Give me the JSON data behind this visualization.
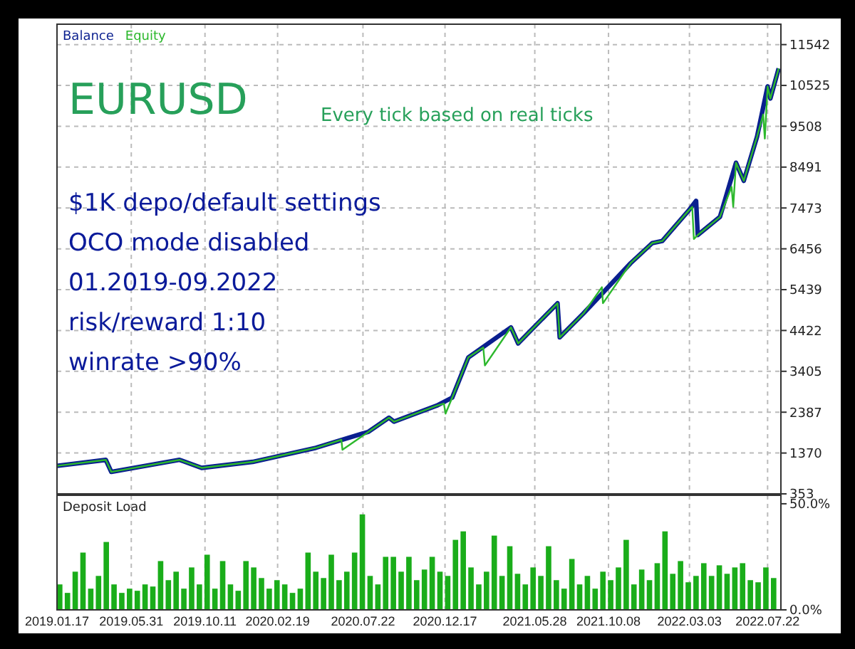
{
  "chart_data": [
    {
      "type": "line",
      "legend": "top left",
      "grid": true,
      "tick_labels": "y",
      "line_style": "solid",
      "annotations": [
        "EURUSD",
        "Every tick based on real ticks",
        "$1K depo/default settings",
        "OCO mode disabled",
        "01.2019-09.2022",
        "risk/reward 1:10",
        "winrate >90%"
      ],
      "xlim": [
        "2019-01-17",
        "2022-08-15"
      ],
      "xticks": [
        {
          "value": "2019-01-17",
          "label": null
        },
        {
          "value": "2019-05-31",
          "label": null
        },
        {
          "value": "2019-10-11",
          "label": null
        },
        {
          "value": "2020-02-19",
          "label": null
        },
        {
          "value": "2020-07-22",
          "label": null
        },
        {
          "value": "2020-12-17",
          "label": null
        },
        {
          "value": "2021-05-28",
          "label": null
        },
        {
          "value": "2021-10-08",
          "label": null
        },
        {
          "value": "2022-03-03",
          "label": null
        },
        {
          "value": "2022-07-22",
          "label": null
        }
      ],
      "ylim": [
        353,
        12050
      ],
      "yticks": [
        353,
        1370,
        2387,
        3405,
        4422,
        5439,
        6456,
        7473,
        8491,
        9508,
        10525,
        11542
      ],
      "series": [
        {
          "name": "Balance",
          "color": "#0a1f8f",
          "x": [
            "2019-01-17",
            "2019-04-15",
            "2019-04-25",
            "2019-08-26",
            "2019-10-05",
            "2020-01-05",
            "2020-04-28",
            "2020-08-01",
            "2020-09-07",
            "2020-09-16",
            "2020-12-02",
            "2020-12-30",
            "2021-01-28",
            "2021-04-15",
            "2021-04-28",
            "2021-07-08",
            "2021-07-12",
            "2021-08-24",
            "2021-11-17",
            "2021-12-26",
            "2022-01-13",
            "2022-03-01",
            "2022-03-15",
            "2022-03-18",
            "2022-04-27",
            "2022-05-26",
            "2022-06-09",
            "2022-07-03",
            "2022-07-22",
            "2022-07-27",
            "2022-08-11"
          ],
          "values": [
            1050,
            1200,
            900,
            1200,
            1000,
            1150,
            1500,
            1900,
            2250,
            2150,
            2550,
            2750,
            3750,
            4500,
            4100,
            5100,
            4250,
            4850,
            6100,
            6600,
            6650,
            7400,
            7650,
            6800,
            7250,
            8600,
            8150,
            9250,
            10500,
            10200,
            10950
          ]
        },
        {
          "name": "Equity",
          "color": "#2db82d",
          "x": [
            "2019-01-17",
            "2019-04-15",
            "2019-04-25",
            "2019-08-26",
            "2019-10-05",
            "2020-01-05",
            "2020-04-28",
            "2020-06-13",
            "2020-06-15",
            "2020-08-01",
            "2020-09-07",
            "2020-09-16",
            "2020-12-02",
            "2020-12-15",
            "2020-12-18",
            "2020-12-30",
            "2021-01-28",
            "2021-02-24",
            "2021-02-27",
            "2021-04-15",
            "2021-04-28",
            "2021-07-08",
            "2021-07-12",
            "2021-08-24",
            "2021-09-26",
            "2021-09-28",
            "2021-11-17",
            "2021-12-26",
            "2022-01-13",
            "2022-03-01",
            "2022-03-08",
            "2022-03-11",
            "2022-03-18",
            "2022-04-27",
            "2022-05-18",
            "2022-05-21",
            "2022-05-26",
            "2022-06-09",
            "2022-07-03",
            "2022-07-14",
            "2022-07-17",
            "2022-07-22",
            "2022-07-27",
            "2022-08-11"
          ],
          "values": [
            1050,
            1200,
            900,
            1200,
            1000,
            1150,
            1500,
            1700,
            1450,
            1900,
            2250,
            2150,
            2550,
            2600,
            2350,
            2750,
            3750,
            4000,
            3550,
            4500,
            4100,
            5100,
            4250,
            4850,
            5500,
            5100,
            6100,
            6600,
            6650,
            7400,
            7500,
            6700,
            6800,
            7250,
            8000,
            7500,
            8600,
            8150,
            9250,
            9800,
            9200,
            10500,
            10200,
            10950
          ]
        }
      ]
    },
    {
      "type": "bar",
      "title": "Deposit Load",
      "grid": "x",
      "color": "#1aad1a",
      "xlim": [
        "2019-01-17",
        "2022-08-15"
      ],
      "xticks": [
        {
          "value": "2019-01-17",
          "label": "2019.01.17"
        },
        {
          "value": "2019-05-31",
          "label": "2019.05.31"
        },
        {
          "value": "2019-10-11",
          "label": "2019.10.11"
        },
        {
          "value": "2020-02-19",
          "label": "2020.02.19"
        },
        {
          "value": "2020-07-22",
          "label": "2020.07.22"
        },
        {
          "value": "2020-12-17",
          "label": "2020.12.17"
        },
        {
          "value": "2021-05-28",
          "label": "2021.05.28"
        },
        {
          "value": "2021-10-08",
          "label": "2021.10.08"
        },
        {
          "value": "2022-03-03",
          "label": "2022.03.03"
        },
        {
          "value": "2022-07-22",
          "label": "2022.07.22"
        }
      ],
      "ylim": [
        0,
        54
      ],
      "yticks": [
        {
          "value": 0,
          "label": "0.0%"
        },
        {
          "value": 50,
          "label": "50.0%"
        }
      ],
      "x": [
        "2019-01-17",
        "2019-01-31",
        "2019-02-14",
        "2019-02-28",
        "2019-03-14",
        "2019-03-28",
        "2019-04-11",
        "2019-04-25",
        "2019-05-09",
        "2019-05-23",
        "2019-06-06",
        "2019-06-20",
        "2019-07-04",
        "2019-07-18",
        "2019-08-01",
        "2019-08-15",
        "2019-08-29",
        "2019-09-12",
        "2019-09-26",
        "2019-10-10",
        "2019-10-24",
        "2019-11-07",
        "2019-11-21",
        "2019-12-05",
        "2019-12-19",
        "2020-01-02",
        "2020-01-16",
        "2020-01-30",
        "2020-02-13",
        "2020-02-27",
        "2020-03-12",
        "2020-03-26",
        "2020-04-09",
        "2020-04-23",
        "2020-05-07",
        "2020-05-21",
        "2020-06-04",
        "2020-06-18",
        "2020-07-02",
        "2020-07-16",
        "2020-07-30",
        "2020-08-13",
        "2020-08-27",
        "2020-09-10",
        "2020-09-24",
        "2020-10-08",
        "2020-10-22",
        "2020-11-05",
        "2020-11-19",
        "2020-12-03",
        "2020-12-17",
        "2020-12-31",
        "2021-01-14",
        "2021-01-28",
        "2021-02-11",
        "2021-02-25",
        "2021-03-11",
        "2021-03-25",
        "2021-04-08",
        "2021-04-22",
        "2021-05-06",
        "2021-05-20",
        "2021-06-03",
        "2021-06-17",
        "2021-07-01",
        "2021-07-15",
        "2021-07-29",
        "2021-08-12",
        "2021-08-26",
        "2021-09-09",
        "2021-09-23",
        "2021-10-07",
        "2021-10-21",
        "2021-11-04",
        "2021-11-18",
        "2021-12-02",
        "2021-12-16",
        "2021-12-30",
        "2022-01-13",
        "2022-01-27",
        "2022-02-10",
        "2022-02-24",
        "2022-03-10",
        "2022-03-24",
        "2022-04-07",
        "2022-04-21",
        "2022-05-05",
        "2022-05-19",
        "2022-06-02",
        "2022-06-16",
        "2022-06-30",
        "2022-07-14",
        "2022-07-28"
      ],
      "values": [
        12,
        8,
        18,
        27,
        10,
        16,
        32,
        12,
        8,
        10,
        9,
        12,
        11,
        23,
        14,
        18,
        10,
        20,
        12,
        26,
        10,
        23,
        12,
        9,
        23,
        20,
        15,
        10,
        14,
        12,
        8,
        10,
        27,
        18,
        15,
        26,
        14,
        18,
        27,
        45,
        16,
        12,
        25,
        25,
        18,
        25,
        14,
        19,
        25,
        18,
        16,
        33,
        37,
        20,
        12,
        18,
        35,
        16,
        30,
        17,
        12,
        20,
        16,
        30,
        14,
        10,
        24,
        12,
        16,
        10,
        18,
        14,
        20,
        33,
        12,
        19,
        14,
        22,
        37,
        17,
        23,
        13,
        16,
        22,
        16,
        21,
        17,
        20,
        22,
        14,
        13,
        20,
        15
      ]
    }
  ]
}
